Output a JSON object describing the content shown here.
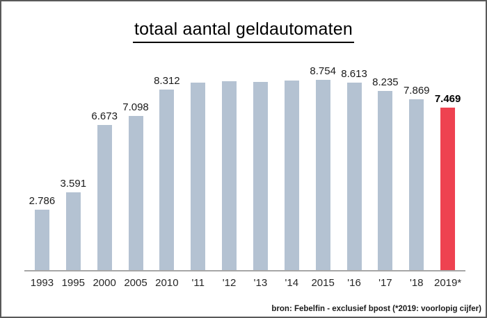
{
  "title": "totaal aantal geldautomaten",
  "source_note": "bron: Febelfin - exclusief bpost (*2019: voorlopig cijfer)",
  "colors": {
    "bar": "#b4c2d2",
    "highlight": "#ee4250",
    "axis": "#a6a6a6",
    "title_text": "#000000",
    "label_text": "#1a1a1a"
  },
  "chart_data": {
    "type": "bar",
    "title": "totaal aantal geldautomaten",
    "categories": [
      "1993",
      "1995",
      "2000",
      "2005",
      "2010",
      "'11",
      "'12",
      "'13",
      "'14",
      "2015",
      "'16",
      "'17",
      "'18",
      "2019*"
    ],
    "values": [
      2786,
      3591,
      6673,
      7098,
      8312,
      8630,
      8700,
      8670,
      8730,
      8754,
      8613,
      8235,
      7869,
      7469
    ],
    "value_labels": [
      "2.786",
      "3.591",
      "6.673",
      "7.098",
      "8.312",
      "",
      "",
      "",
      "",
      "8.754",
      "8.613",
      "8.235",
      "7.869",
      "7.469"
    ],
    "highlight_index": 13,
    "highlight_category": "2019*",
    "xlabel": "",
    "ylabel": "",
    "ylim": [
      0,
      8754
    ],
    "grid": false,
    "legend": false,
    "note": "bron: Febelfin - exclusief bpost (*2019: voorlopig cijfer)"
  }
}
